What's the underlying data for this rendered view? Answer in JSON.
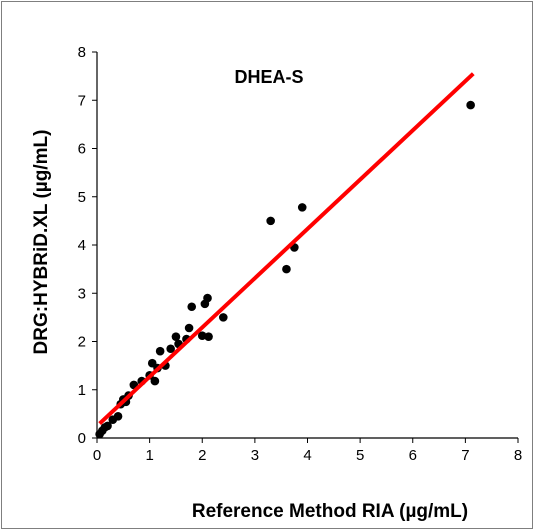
{
  "chart_data": {
    "type": "scatter",
    "title": "DHEA-S",
    "xlabel": "Reference Method RIA  (µg/mL)",
    "ylabel": "DRG:HYBRiD.XL  (µg/mL)",
    "xlim": [
      0,
      8
    ],
    "ylim": [
      0,
      8
    ],
    "x_ticks": [
      "0",
      "1",
      "2",
      "3",
      "4",
      "5",
      "6",
      "7",
      "8"
    ],
    "y_ticks": [
      "0",
      "1",
      "2",
      "3",
      "4",
      "5",
      "6",
      "7",
      "8"
    ],
    "grid": false,
    "legend": "none",
    "series": [
      {
        "color": "#000000",
        "points": [
          [
            0.05,
            0.08
          ],
          [
            0.1,
            0.15
          ],
          [
            0.15,
            0.22
          ],
          [
            0.2,
            0.25
          ],
          [
            0.3,
            0.38
          ],
          [
            0.4,
            0.45
          ],
          [
            0.45,
            0.7
          ],
          [
            0.5,
            0.8
          ],
          [
            0.55,
            0.75
          ],
          [
            0.6,
            0.88
          ],
          [
            0.7,
            1.1
          ],
          [
            0.85,
            1.18
          ],
          [
            1.0,
            1.3
          ],
          [
            1.05,
            1.55
          ],
          [
            1.1,
            1.18
          ],
          [
            1.15,
            1.45
          ],
          [
            1.2,
            1.8
          ],
          [
            1.3,
            1.5
          ],
          [
            1.4,
            1.85
          ],
          [
            1.5,
            2.1
          ],
          [
            1.55,
            1.95
          ],
          [
            1.7,
            2.05
          ],
          [
            1.75,
            2.28
          ],
          [
            1.8,
            2.72
          ],
          [
            2.0,
            2.12
          ],
          [
            2.05,
            2.78
          ],
          [
            2.1,
            2.9
          ],
          [
            2.12,
            2.1
          ],
          [
            2.4,
            2.5
          ],
          [
            3.3,
            4.5
          ],
          [
            3.6,
            3.5
          ],
          [
            3.75,
            3.95
          ],
          [
            3.9,
            4.78
          ],
          [
            7.1,
            6.9
          ]
        ]
      }
    ],
    "regression_line": {
      "color": "#ff0000",
      "x": [
        0.05,
        7.15
      ],
      "y": [
        0.3,
        7.55
      ]
    }
  }
}
